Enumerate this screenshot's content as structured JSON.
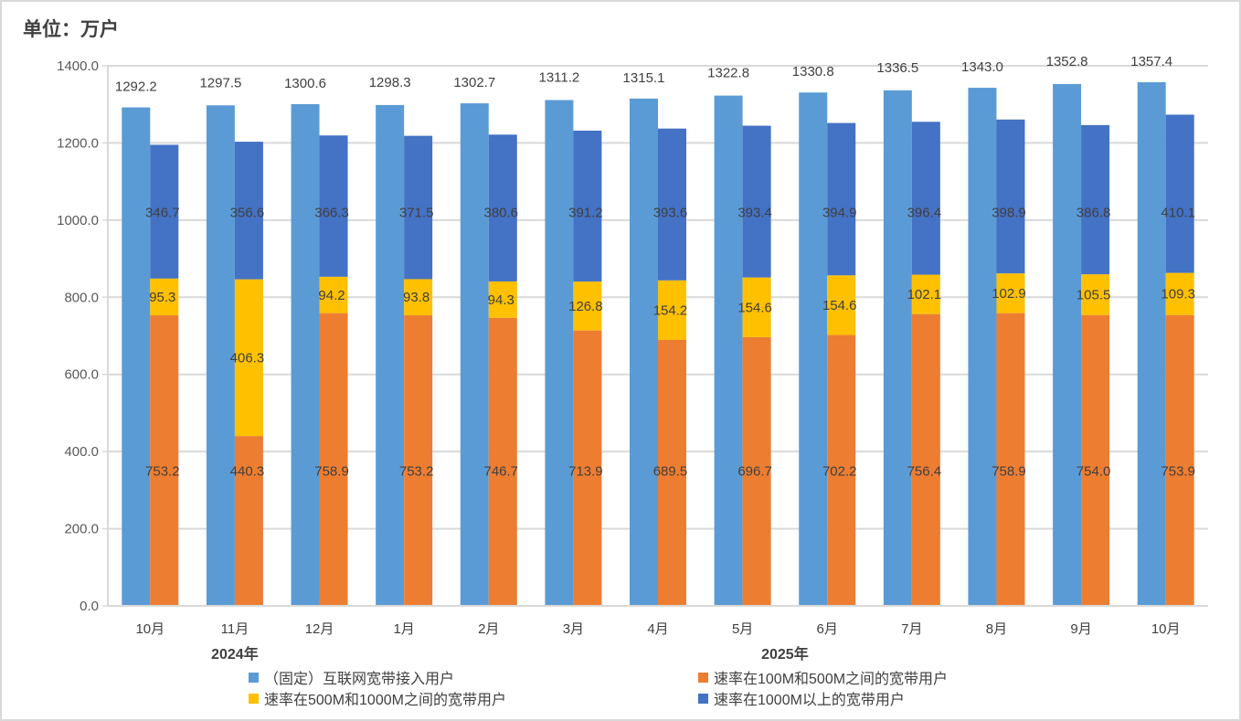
{
  "unit_label": "单位：万户",
  "chart_data": {
    "type": "bar",
    "title": "",
    "unit": "万户",
    "ylim": [
      0,
      1400
    ],
    "yticks": [
      "0.0",
      "200.0",
      "400.0",
      "600.0",
      "800.0",
      "1000.0",
      "1200.0",
      "1400.0"
    ],
    "ytick_values": [
      0,
      200,
      400,
      600,
      800,
      1000,
      1200,
      1400
    ],
    "grid": true,
    "categories": [
      "10月",
      "11月",
      "12月",
      "1月",
      "2月",
      "3月",
      "4月",
      "5月",
      "6月",
      "7月",
      "8月",
      "9月",
      "10月"
    ],
    "year_groups": [
      {
        "label": "2024年",
        "from": 0,
        "to": 2
      },
      {
        "label": "2025年",
        "from": 3,
        "to": 12
      }
    ],
    "total_series": {
      "name": "（固定）互联网宽带接入用户",
      "color": "#5b9bd5",
      "values": [
        1292.2,
        1297.5,
        1300.6,
        1298.3,
        1302.7,
        1311.2,
        1315.1,
        1322.8,
        1330.8,
        1336.5,
        1343.0,
        1352.8,
        1357.4
      ]
    },
    "stacked_series": [
      {
        "name": "速率在100M和500M之间的宽带用户",
        "color": "#ed7d31",
        "values": [
          753.2,
          440.3,
          758.9,
          753.2,
          746.7,
          713.9,
          689.5,
          696.7,
          702.2,
          756.4,
          758.9,
          754.0,
          753.9
        ]
      },
      {
        "name": "速率在500M和1000M之间的宽带用户",
        "color": "#ffc000",
        "values": [
          95.3,
          406.3,
          94.2,
          93.8,
          94.3,
          126.8,
          154.2,
          154.6,
          154.6,
          102.1,
          102.9,
          105.5,
          109.3
        ]
      },
      {
        "name": "速率在1000M以上的宽带用户",
        "color": "#4472c4",
        "values": [
          346.7,
          356.6,
          366.3,
          371.5,
          380.6,
          391.2,
          393.6,
          393.4,
          394.9,
          396.4,
          398.9,
          386.8,
          410.1
        ]
      }
    ],
    "legend": [
      {
        "name": "（固定）互联网宽带接入用户",
        "color": "#5b9bd5"
      },
      {
        "name": "速率在100M和500M之间的宽带用户",
        "color": "#ed7d31"
      },
      {
        "name": "速率在500M和1000M之间的宽带用户",
        "color": "#ffc000"
      },
      {
        "name": "速率在1000M以上的宽带用户",
        "color": "#4472c4"
      }
    ],
    "legend_position": "bottom"
  }
}
